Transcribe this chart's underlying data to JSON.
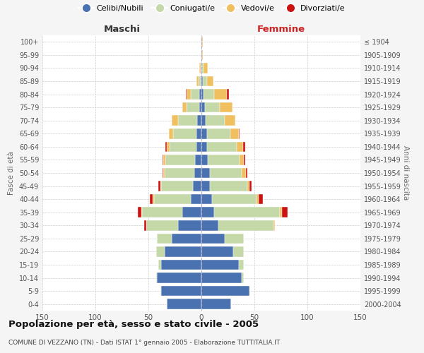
{
  "age_groups": [
    "0-4",
    "5-9",
    "10-14",
    "15-19",
    "20-24",
    "25-29",
    "30-34",
    "35-39",
    "40-44",
    "45-49",
    "50-54",
    "55-59",
    "60-64",
    "65-69",
    "70-74",
    "75-79",
    "80-84",
    "85-89",
    "90-94",
    "95-99",
    "100+"
  ],
  "birth_years": [
    "2000-2004",
    "1995-1999",
    "1990-1994",
    "1985-1989",
    "1980-1984",
    "1975-1979",
    "1970-1974",
    "1965-1969",
    "1960-1964",
    "1955-1959",
    "1950-1954",
    "1945-1949",
    "1940-1944",
    "1935-1939",
    "1930-1934",
    "1925-1929",
    "1920-1924",
    "1915-1919",
    "1910-1914",
    "1905-1909",
    "≤ 1904"
  ],
  "male_celibi": [
    33,
    38,
    42,
    38,
    35,
    28,
    22,
    18,
    10,
    8,
    7,
    6,
    5,
    5,
    4,
    2,
    2,
    1,
    0,
    0,
    0
  ],
  "male_coniugati": [
    0,
    1,
    1,
    3,
    8,
    14,
    30,
    38,
    35,
    30,
    28,
    28,
    25,
    22,
    18,
    12,
    8,
    2,
    1,
    0,
    0
  ],
  "male_vedovi": [
    0,
    0,
    0,
    0,
    0,
    0,
    0,
    1,
    1,
    1,
    1,
    2,
    3,
    4,
    6,
    4,
    4,
    2,
    1,
    0,
    0
  ],
  "male_divorziati": [
    0,
    0,
    0,
    0,
    0,
    0,
    2,
    3,
    3,
    2,
    1,
    1,
    1,
    0,
    0,
    0,
    1,
    0,
    0,
    0,
    0
  ],
  "female_celibi": [
    28,
    45,
    38,
    35,
    30,
    22,
    16,
    12,
    10,
    8,
    8,
    6,
    5,
    5,
    4,
    3,
    2,
    1,
    0,
    0,
    0
  ],
  "female_coniugati": [
    0,
    1,
    2,
    5,
    10,
    18,
    52,
    62,
    42,
    35,
    30,
    30,
    28,
    22,
    18,
    14,
    10,
    4,
    2,
    0,
    0
  ],
  "female_vedovi": [
    0,
    0,
    0,
    0,
    0,
    0,
    1,
    2,
    2,
    2,
    4,
    4,
    6,
    8,
    10,
    12,
    12,
    6,
    4,
    1,
    1
  ],
  "female_divorziati": [
    0,
    0,
    0,
    0,
    0,
    0,
    0,
    5,
    4,
    2,
    1,
    1,
    2,
    1,
    0,
    0,
    2,
    0,
    0,
    0,
    0
  ],
  "colors": {
    "celibi": "#4a72b0",
    "coniugati": "#c5d9a8",
    "vedovi": "#f0c060",
    "divorziati": "#cc1111"
  },
  "title": "Popolazione per età, sesso e stato civile - 2005",
  "subtitle": "COMUNE DI VEZZANO (TN) - Dati ISTAT 1° gennaio 2005 - Elaborazione TUTTITALIA.IT",
  "xlabel_left": "Maschi",
  "xlabel_right": "Femmine",
  "ylabel_left": "Fasce di età",
  "ylabel_right": "Anni di nascita",
  "xlim": 150,
  "legend_labels": [
    "Celibi/Nubili",
    "Coniugati/e",
    "Vedovi/e",
    "Divorziati/e"
  ],
  "bg_color": "#f5f5f5",
  "plot_bg": "#ffffff"
}
